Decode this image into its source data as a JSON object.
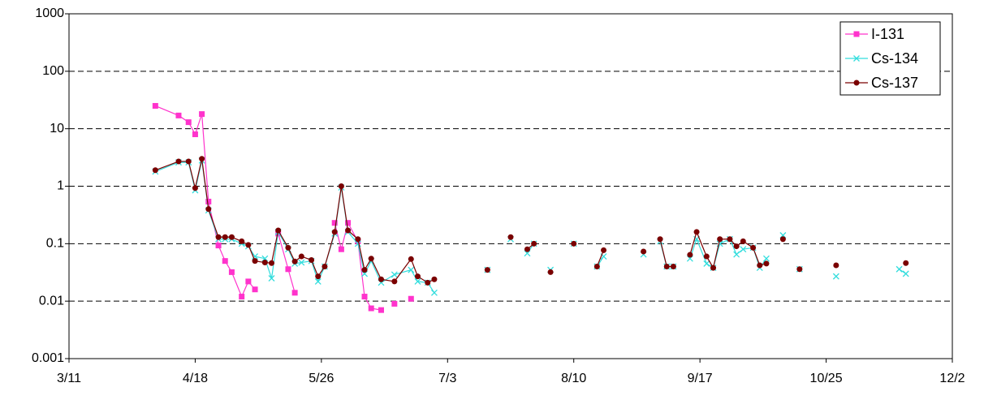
{
  "chart_data": {
    "type": "line",
    "log_y": true,
    "grid": true,
    "legend": "upper right",
    "xlim": [
      "3/11",
      "12/2"
    ],
    "xticks": [
      "3/11",
      "4/18",
      "5/26",
      "7/3",
      "8/10",
      "9/17",
      "10/25",
      "12/2"
    ],
    "ylim": [
      0.001,
      1000
    ],
    "yticks": [
      0.001,
      0.01,
      0.1,
      1,
      10,
      100,
      1000
    ],
    "series": [
      {
        "name": "I-131",
        "color": "#ff33cc",
        "marker": "square",
        "x": [
          "4/6",
          "4/13",
          "4/16",
          "4/18",
          "4/20",
          "4/22",
          "4/25",
          "4/27",
          "4/29",
          "5/2",
          "5/4",
          "5/6",
          null,
          "5/13",
          "5/16",
          "5/18",
          null,
          "5/30",
          "6/1",
          "6/3",
          "6/6",
          "6/8",
          "6/10",
          "6/13",
          null,
          "6/17",
          null,
          "6/22"
        ],
        "values": [
          25,
          17,
          13,
          8,
          18,
          0.54,
          0.093,
          0.05,
          0.032,
          0.012,
          0.022,
          0.016,
          null,
          0.15,
          0.036,
          0.014,
          null,
          0.23,
          0.08,
          0.23,
          0.11,
          0.012,
          0.0075,
          0.007,
          null,
          0.009,
          null,
          0.011
        ]
      },
      {
        "name": "Cs-134",
        "color": "#33dddd",
        "marker": "x",
        "x": [
          "4/6",
          "4/13",
          "4/16",
          "4/18",
          "4/20",
          "4/22",
          "4/25",
          "4/27",
          "4/29",
          "5/2",
          "5/4",
          "5/6",
          "5/9",
          "5/11",
          "5/13",
          "5/16",
          "5/18",
          "5/20",
          "5/23",
          "5/25",
          "5/27",
          "5/30",
          "6/1",
          "6/3",
          "6/6",
          "6/8",
          "6/10",
          "6/13",
          "6/17",
          "6/22",
          "6/24",
          "6/27",
          "6/29",
          null,
          "7/15",
          null,
          "7/22",
          null,
          "7/27",
          "7/29",
          null,
          "8/3",
          null,
          "8/10",
          null,
          "8/17",
          "8/19",
          null,
          "8/31",
          null,
          "9/5",
          "9/7",
          "9/9",
          null,
          "9/14",
          "9/16",
          "9/19",
          "9/21",
          "9/23",
          "9/26",
          "9/28",
          "9/30",
          "10/3",
          "10/5",
          "10/7",
          null,
          "10/12",
          null,
          "10/17",
          null,
          "10/28",
          null,
          "11/16",
          "11/18"
        ],
        "values": [
          1.8,
          2.6,
          2.6,
          0.85,
          2.8,
          0.38,
          0.12,
          0.12,
          0.12,
          0.1,
          0.09,
          0.06,
          0.055,
          0.025,
          0.16,
          0.08,
          0.045,
          0.047,
          0.05,
          0.022,
          0.04,
          0.15,
          0.95,
          0.16,
          0.1,
          0.03,
          0.05,
          0.021,
          0.029,
          0.035,
          0.022,
          0.021,
          0.014,
          null,
          0.035,
          null,
          0.12,
          null,
          0.068,
          0.1,
          null,
          0.035,
          null,
          0.1,
          null,
          0.04,
          0.06,
          null,
          0.065,
          null,
          0.11,
          0.04,
          0.04,
          null,
          0.055,
          0.12,
          0.045,
          0.038,
          0.1,
          0.12,
          0.065,
          0.08,
          0.085,
          0.038,
          0.055,
          null,
          0.14,
          null,
          0.036,
          null,
          0.027,
          null,
          0.036,
          0.03
        ]
      },
      {
        "name": "Cs-137",
        "color": "#7a0000",
        "marker": "circle",
        "x": [
          "4/6",
          "4/13",
          "4/16",
          "4/18",
          "4/20",
          "4/22",
          "4/25",
          "4/27",
          "4/29",
          "5/2",
          "5/4",
          "5/6",
          "5/9",
          "5/11",
          "5/13",
          "5/16",
          "5/18",
          "5/20",
          "5/23",
          "5/25",
          "5/27",
          "5/30",
          "6/1",
          "6/3",
          "6/6",
          "6/8",
          "6/10",
          "6/13",
          "6/17",
          "6/22",
          "6/24",
          "6/27",
          "6/29",
          null,
          "7/15",
          null,
          "7/22",
          null,
          "7/27",
          "7/29",
          null,
          "8/3",
          null,
          "8/10",
          null,
          "8/17",
          "8/19",
          null,
          "8/31",
          null,
          "9/5",
          "9/7",
          "9/9",
          null,
          "9/14",
          "9/16",
          "9/19",
          "9/21",
          "9/23",
          "9/26",
          "9/28",
          "9/30",
          "10/3",
          "10/5",
          "10/7",
          null,
          "10/12",
          null,
          "10/17",
          null,
          "10/28",
          null,
          "11/18"
        ],
        "values": [
          1.9,
          2.7,
          2.7,
          0.93,
          3.0,
          0.4,
          0.13,
          0.13,
          0.13,
          0.11,
          0.095,
          0.05,
          0.047,
          0.046,
          0.17,
          0.085,
          0.049,
          0.06,
          0.052,
          0.027,
          0.04,
          0.16,
          1.0,
          0.17,
          0.12,
          0.035,
          0.055,
          0.024,
          0.022,
          0.054,
          0.027,
          0.021,
          0.024,
          null,
          0.035,
          null,
          0.13,
          null,
          0.08,
          0.1,
          null,
          0.032,
          null,
          0.1,
          null,
          0.04,
          0.077,
          null,
          0.073,
          null,
          0.12,
          0.04,
          0.04,
          null,
          0.064,
          0.16,
          0.06,
          0.038,
          0.12,
          0.12,
          0.09,
          0.11,
          0.085,
          0.042,
          0.045,
          null,
          0.12,
          null,
          0.036,
          null,
          0.042,
          null,
          0.046
        ]
      }
    ]
  }
}
